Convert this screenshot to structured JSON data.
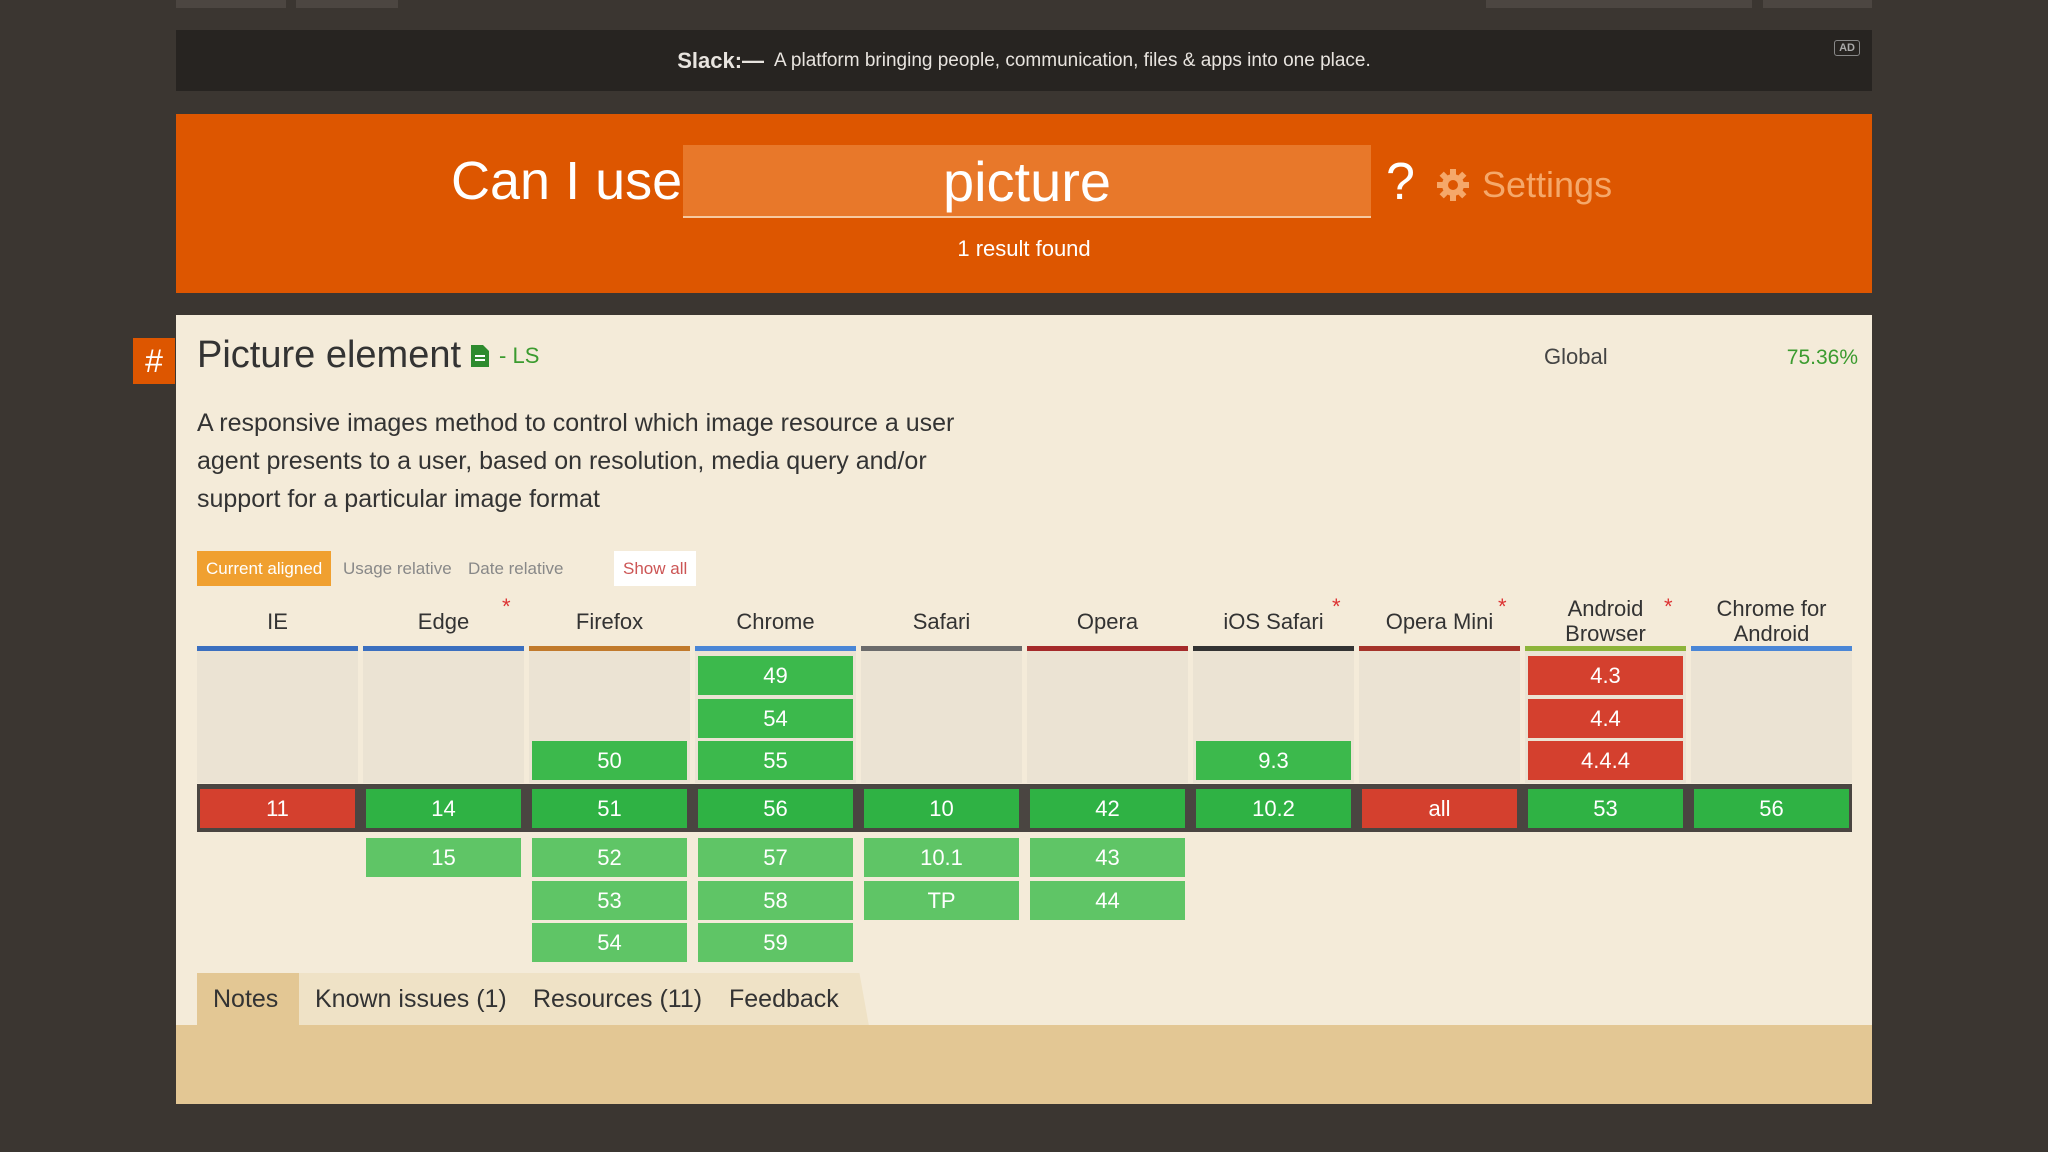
{
  "ad": {
    "brand": "Slack:—",
    "text": "A platform bringing people, communication, files & apps into one place.",
    "badge": "AD"
  },
  "header": {
    "prefix": "Can I use",
    "query": "picture",
    "help": "?",
    "settings": "Settings",
    "result_count": "1 result found"
  },
  "feature": {
    "anchor": "#",
    "title": "Picture element",
    "status": "- LS",
    "scope": "Global",
    "usage": "75.36%",
    "description": "A responsive images method to control which image resource a user agent presents to a user, based on resolution, media query and/or support for a particular image format"
  },
  "view_tabs": [
    "Current aligned",
    "Usage relative",
    "Date relative"
  ],
  "show_all": "Show all",
  "browsers": [
    {
      "name": "IE",
      "color": "#3b6fbf",
      "before": [],
      "current": {
        "version": "11",
        "support": "n"
      },
      "after": []
    },
    {
      "name": "Edge",
      "note_marker": "*",
      "color": "#3b6fbf",
      "before": [],
      "current": {
        "version": "14",
        "support": "y"
      },
      "after": [
        {
          "version": "15",
          "support": "y"
        }
      ]
    },
    {
      "name": "Firefox",
      "color": "#c17a2c",
      "before": [
        {
          "version": "50",
          "support": "y"
        }
      ],
      "current": {
        "version": "51",
        "support": "y"
      },
      "after": [
        {
          "version": "52",
          "support": "y"
        },
        {
          "version": "53",
          "support": "y"
        },
        {
          "version": "54",
          "support": "y"
        }
      ]
    },
    {
      "name": "Chrome",
      "color": "#4a86d6",
      "before": [
        {
          "version": "49",
          "support": "y"
        },
        {
          "version": "54",
          "support": "y"
        },
        {
          "version": "55",
          "support": "y"
        }
      ],
      "current": {
        "version": "56",
        "support": "y"
      },
      "after": [
        {
          "version": "57",
          "support": "y"
        },
        {
          "version": "58",
          "support": "y"
        },
        {
          "version": "59",
          "support": "y"
        }
      ]
    },
    {
      "name": "Safari",
      "color": "#6b6b6b",
      "before": [],
      "current": {
        "version": "10",
        "support": "y"
      },
      "after": [
        {
          "version": "10.1",
          "support": "y"
        },
        {
          "version": "TP",
          "support": "y"
        }
      ]
    },
    {
      "name": "Opera",
      "color": "#a52a2a",
      "before": [],
      "current": {
        "version": "42",
        "support": "y"
      },
      "after": [
        {
          "version": "43",
          "support": "y"
        },
        {
          "version": "44",
          "support": "y"
        }
      ]
    },
    {
      "name": "iOS Safari",
      "note_marker": "*",
      "color": "#333333",
      "before": [
        {
          "version": "9.3",
          "support": "y"
        }
      ],
      "current": {
        "version": "10.2",
        "support": "y"
      },
      "after": []
    },
    {
      "name": "Opera Mini",
      "note_marker": "*",
      "color": "#a5342a",
      "before": [],
      "current": {
        "version": "all",
        "support": "n"
      },
      "after": []
    },
    {
      "name": "Android Browser",
      "note_marker": "*",
      "color": "#8db43a",
      "before": [
        {
          "version": "4.3",
          "support": "n"
        },
        {
          "version": "4.4",
          "support": "n"
        },
        {
          "version": "4.4.4",
          "support": "n"
        }
      ],
      "current": {
        "version": "53",
        "support": "y"
      },
      "after": []
    },
    {
      "name": "Chrome for Android",
      "color": "#4a86d6",
      "before": [],
      "current": {
        "version": "56",
        "support": "y"
      },
      "after": []
    }
  ],
  "detail_tabs": [
    "Notes",
    "Known issues (1)",
    "Resources (11)",
    "Feedback"
  ]
}
